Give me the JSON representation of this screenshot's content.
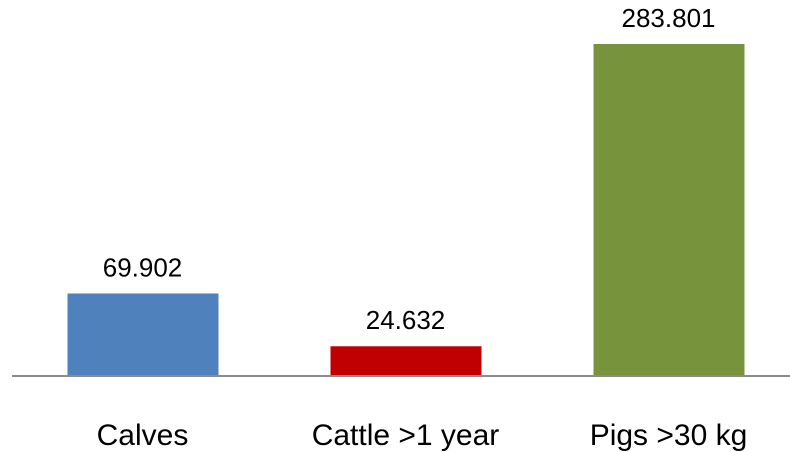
{
  "chart_data": {
    "type": "bar",
    "categories": [
      "Calves",
      "Cattle >1 year",
      "Pigs >30 kg"
    ],
    "values": [
      69.902,
      24.632,
      283.801
    ],
    "colors": [
      "#4f81bd",
      "#c00000",
      "#77933c"
    ]
  }
}
